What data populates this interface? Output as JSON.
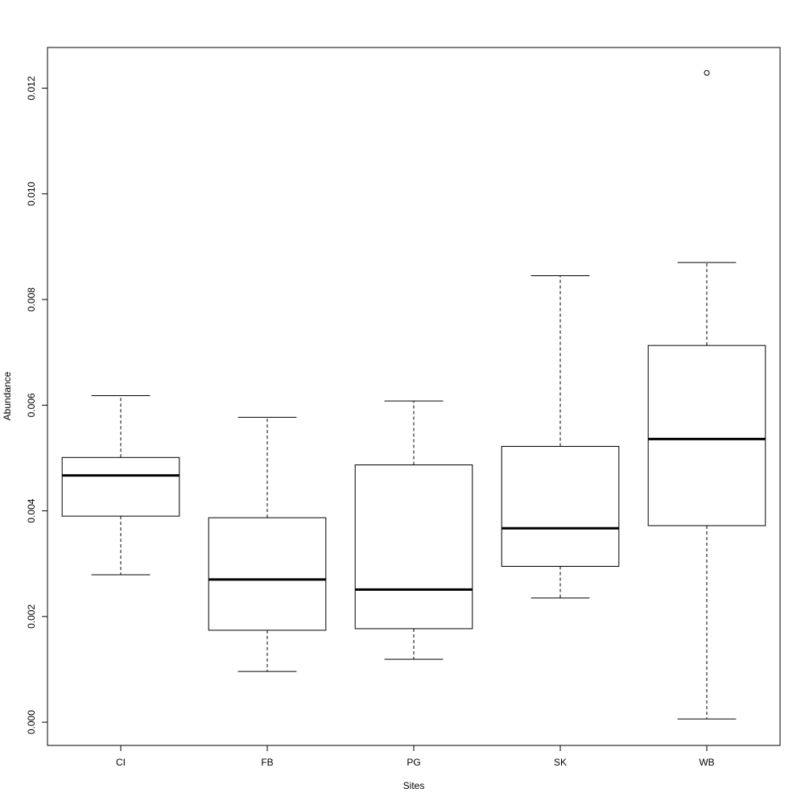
{
  "chart_data": {
    "type": "box",
    "x_label": "Sites",
    "y_label": "Abundance",
    "categories": [
      "CI",
      "FB",
      "PG",
      "SK",
      "WB"
    ],
    "min": [
      0.00279,
      0.00096,
      0.00119,
      0.00235,
      6e-05
    ],
    "q1": [
      0.0039,
      0.00174,
      0.00177,
      0.00295,
      0.00372
    ],
    "median": [
      0.00467,
      0.0027,
      0.00251,
      0.00367,
      0.00536
    ],
    "q3": [
      0.00501,
      0.00387,
      0.00487,
      0.00522,
      0.00713
    ],
    "max": [
      0.00618,
      0.00577,
      0.00608,
      0.00845,
      0.0087
    ],
    "outliers": [
      [],
      [],
      [],
      [],
      [
        0.01229
      ]
    ],
    "color": "#000000",
    "ylim": [
      -0.00044,
      0.01277
    ],
    "yticks": [
      {
        "value": 0,
        "label": "0.000"
      },
      0.002,
      0.004,
      0.006,
      0.008,
      {
        "value": 0.01,
        "label": "0.010"
      },
      0.012
    ]
  }
}
